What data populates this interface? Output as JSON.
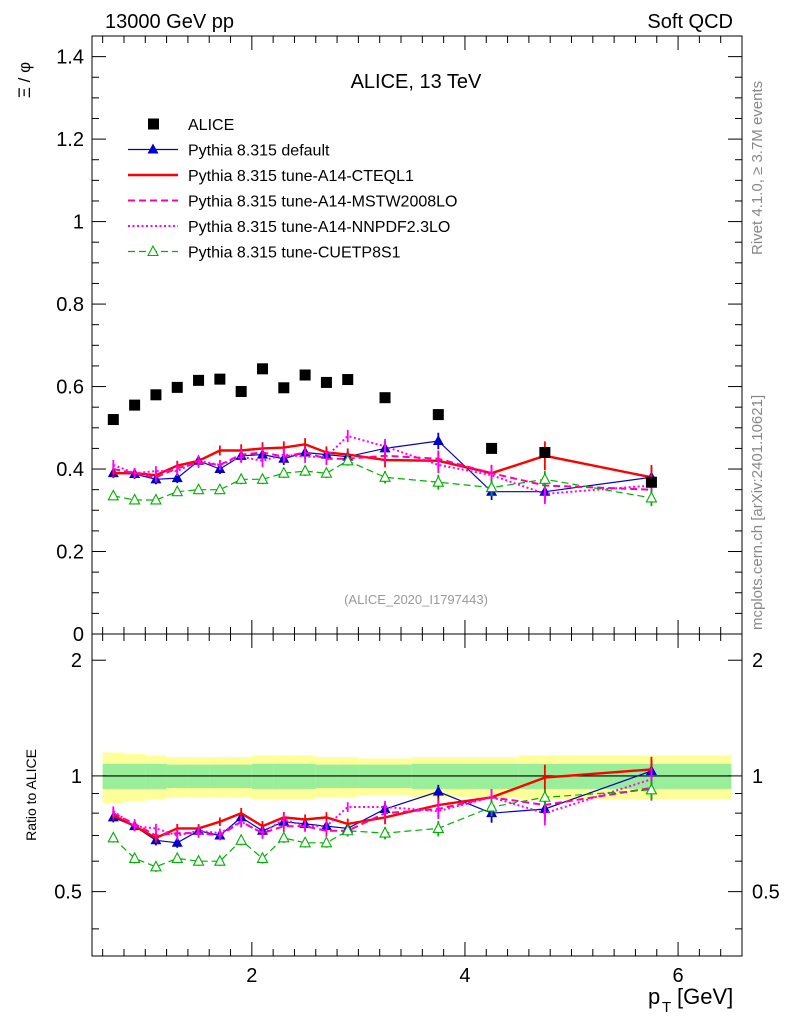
{
  "header": {
    "left": "13000 GeV pp",
    "right": "Soft QCD",
    "side_top": "Rivet 4.1.0, ≥ 3.7M events",
    "side_bottom": "mcplots.cern.ch [arXiv:2401.10621]"
  },
  "chart_data": {
    "type": "line",
    "title": "ALICE, 13 TeV",
    "analysis_label": "(ALICE_2020_I1797443)",
    "ylabel": "Ξ / φ",
    "xlabel": "p_T [GeV]",
    "xlabel_main": "p",
    "xlabel_sub": "T",
    "xlabel_unit": "[GeV]",
    "xlim": [
      0.5,
      6.6
    ],
    "ylim": [
      0,
      1.45
    ],
    "xticks": [
      2,
      4,
      6
    ],
    "xtick_labels": [
      "2",
      "4",
      "6"
    ],
    "yticks": [
      0,
      0.2,
      0.4,
      0.6,
      0.8,
      1,
      1.2,
      1.4
    ],
    "ytick_labels": [
      "0",
      "0.2",
      "0.4",
      "0.6",
      "0.8",
      "1",
      "1.2",
      "1.4"
    ],
    "x": [
      0.7,
      0.9,
      1.1,
      1.3,
      1.5,
      1.7,
      1.9,
      2.1,
      2.3,
      2.5,
      2.7,
      2.9,
      3.25,
      3.75,
      4.25,
      4.75,
      5.75
    ],
    "data": {
      "name": "ALICE",
      "values": [
        0.52,
        0.555,
        0.58,
        0.598,
        0.615,
        0.618,
        0.588,
        0.643,
        0.597,
        0.628,
        0.61,
        0.617,
        0.573,
        0.532,
        0.45,
        0.44,
        0.368
      ]
    },
    "series": [
      {
        "name": "Pythia 8.315 default",
        "color": "#0000cc",
        "style": "solid",
        "marker": "triangle",
        "width": 1.2,
        "values": [
          0.39,
          0.388,
          0.375,
          0.378,
          0.42,
          0.4,
          0.432,
          0.435,
          0.425,
          0.44,
          0.435,
          0.43,
          0.45,
          0.468,
          0.345,
          0.345,
          0.38
        ],
        "errors": [
          0.012,
          0.012,
          0.012,
          0.012,
          0.012,
          0.012,
          0.015,
          0.015,
          0.015,
          0.015,
          0.015,
          0.015,
          0.018,
          0.02,
          0.02,
          0.025,
          0.025
        ]
      },
      {
        "name": "Pythia 8.315 tune-A14-CTEQL1",
        "color": "#ff0000",
        "style": "solid",
        "marker": "none",
        "width": 2.4,
        "values": [
          0.39,
          0.39,
          0.385,
          0.408,
          0.42,
          0.445,
          0.445,
          0.45,
          0.452,
          0.46,
          0.44,
          0.435,
          0.422,
          0.42,
          0.39,
          0.432,
          0.38
        ],
        "errors": [
          0.012,
          0.012,
          0.012,
          0.012,
          0.012,
          0.012,
          0.015,
          0.015,
          0.015,
          0.015,
          0.015,
          0.015,
          0.018,
          0.02,
          0.02,
          0.035,
          0.03
        ]
      },
      {
        "name": "Pythia 8.315 tune-A14-MSTW2008LO",
        "color": "#ff00aa",
        "style": "dashed",
        "marker": "none",
        "width": 2.0,
        "values": [
          0.4,
          0.39,
          0.38,
          0.402,
          0.415,
          0.41,
          0.435,
          0.44,
          0.43,
          0.44,
          0.425,
          0.425,
          0.432,
          0.425,
          0.39,
          0.36,
          0.35
        ],
        "errors": [
          0.012,
          0.012,
          0.012,
          0.012,
          0.012,
          0.012,
          0.015,
          0.015,
          0.015,
          0.015,
          0.015,
          0.015,
          0.018,
          0.02,
          0.02,
          0.025,
          0.025
        ]
      },
      {
        "name": "Pythia 8.315 tune-A14-NNPDF2.3LO",
        "color": "#ff00ff",
        "style": "dotted",
        "marker": "none",
        "width": 2.0,
        "values": [
          0.41,
          0.39,
          0.395,
          0.395,
          0.42,
          0.41,
          0.43,
          0.42,
          0.435,
          0.43,
          0.43,
          0.48,
          0.455,
          0.41,
          0.385,
          0.34,
          0.36
        ],
        "errors": [
          0.012,
          0.012,
          0.012,
          0.012,
          0.012,
          0.012,
          0.015,
          0.015,
          0.015,
          0.015,
          0.015,
          0.015,
          0.018,
          0.02,
          0.02,
          0.025,
          0.025
        ]
      },
      {
        "name": "Pythia 8.315 tune-CUETP8S1",
        "color": "#00b000",
        "style": "dashed",
        "marker": "open-triangle",
        "width": 1.2,
        "values": [
          0.335,
          0.325,
          0.325,
          0.345,
          0.35,
          0.35,
          0.375,
          0.375,
          0.39,
          0.395,
          0.39,
          0.42,
          0.38,
          0.368,
          0.355,
          0.375,
          0.33
        ],
        "errors": [
          0.01,
          0.01,
          0.01,
          0.01,
          0.01,
          0.01,
          0.012,
          0.012,
          0.012,
          0.012,
          0.012,
          0.012,
          0.015,
          0.018,
          0.02,
          0.02,
          0.02
        ]
      }
    ],
    "ratio": {
      "ylabel": "Ratio to ALICE",
      "ylim": [
        0.34,
        2.34
      ],
      "yticks": [
        0.5,
        1,
        2
      ],
      "ytick_labels": [
        "0.5",
        "1",
        "2"
      ],
      "band_green": [
        0.075,
        0.075,
        0.075,
        0.07,
        0.07,
        0.07,
        0.07,
        0.075,
        0.075,
        0.075,
        0.07,
        0.07,
        0.07,
        0.075,
        0.075,
        0.075,
        0.075
      ],
      "band_yellow": [
        0.15,
        0.14,
        0.13,
        0.12,
        0.12,
        0.12,
        0.12,
        0.13,
        0.13,
        0.13,
        0.12,
        0.12,
        0.11,
        0.12,
        0.12,
        0.13,
        0.13
      ],
      "bin_edges": [
        0.6,
        0.8,
        1.0,
        1.2,
        1.4,
        1.6,
        1.8,
        2.0,
        2.2,
        2.4,
        2.6,
        2.8,
        3.0,
        3.5,
        4.0,
        4.5,
        5.0,
        6.5
      ],
      "series": [
        {
          "name": "Pythia 8.315 default",
          "values": [
            0.78,
            0.74,
            0.68,
            0.67,
            0.72,
            0.7,
            0.78,
            0.72,
            0.76,
            0.75,
            0.74,
            0.73,
            0.82,
            0.91,
            0.8,
            0.82,
            1.03
          ]
        },
        {
          "name": "Pythia 8.315 tune-A14-CTEQL1",
          "values": [
            0.79,
            0.74,
            0.69,
            0.73,
            0.73,
            0.76,
            0.8,
            0.74,
            0.78,
            0.77,
            0.78,
            0.75,
            0.78,
            0.84,
            0.88,
            0.99,
            1.04
          ]
        },
        {
          "name": "Pythia 8.315 tune-A14-MSTW2008LO",
          "values": [
            0.8,
            0.75,
            0.7,
            0.71,
            0.71,
            0.7,
            0.76,
            0.71,
            0.74,
            0.74,
            0.72,
            0.72,
            0.8,
            0.82,
            0.88,
            0.84,
            0.93
          ]
        },
        {
          "name": "Pythia 8.315 tune-A14-NNPDF2.3LO",
          "values": [
            0.81,
            0.74,
            0.73,
            0.7,
            0.72,
            0.71,
            0.76,
            0.71,
            0.77,
            0.74,
            0.74,
            0.83,
            0.83,
            0.81,
            0.88,
            0.8,
            0.98
          ]
        },
        {
          "name": "Pythia 8.315 tune-CUETP8S1",
          "values": [
            0.69,
            0.61,
            0.58,
            0.61,
            0.6,
            0.6,
            0.68,
            0.61,
            0.69,
            0.67,
            0.67,
            0.72,
            0.71,
            0.73,
            0.83,
            0.88,
            0.92
          ]
        }
      ]
    }
  }
}
